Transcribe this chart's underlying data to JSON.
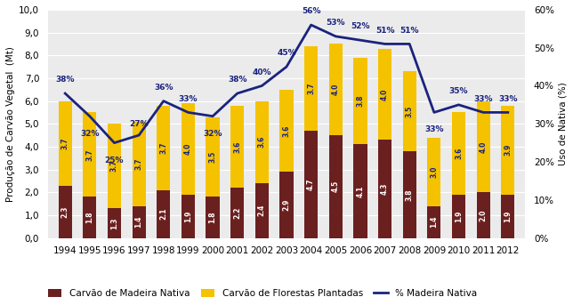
{
  "years": [
    1994,
    1995,
    1996,
    1997,
    1998,
    1999,
    2000,
    2001,
    2002,
    2003,
    2004,
    2005,
    2006,
    2007,
    2008,
    2009,
    2010,
    2011,
    2012
  ],
  "nativa": [
    2.3,
    1.8,
    1.3,
    1.4,
    2.1,
    1.9,
    1.8,
    2.2,
    2.4,
    2.9,
    4.7,
    4.5,
    4.1,
    4.3,
    3.8,
    1.4,
    1.9,
    2.0,
    1.9
  ],
  "plantada": [
    3.7,
    3.7,
    3.7,
    3.7,
    3.7,
    4.0,
    3.5,
    3.6,
    3.6,
    3.6,
    3.7,
    4.0,
    3.8,
    4.0,
    3.5,
    3.0,
    3.6,
    4.0,
    3.9
  ],
  "pct_nativa": [
    38,
    32,
    25,
    27,
    36,
    33,
    32,
    38,
    40,
    45,
    56,
    53,
    52,
    51,
    51,
    33,
    35,
    33,
    33
  ],
  "bar_nativa_color": "#6B2020",
  "bar_plantada_color": "#F5C200",
  "line_color": "#1A237E",
  "background_color": "#EBEBEB",
  "ylim_left": [
    0,
    10
  ],
  "ylim_right": [
    0,
    60
  ],
  "ylabel_left": "Produção de Carvão Vegetal  (Mt)",
  "ylabel_right": "Uso de Nativa (%)",
  "legend_nativa": "Carvão de Madeira Nativa",
  "legend_plantada": "Carvão de Florestas Plantadas",
  "legend_line": "% Madeira Nativa",
  "figsize": [
    6.44,
    3.43
  ],
  "dpi": 100
}
